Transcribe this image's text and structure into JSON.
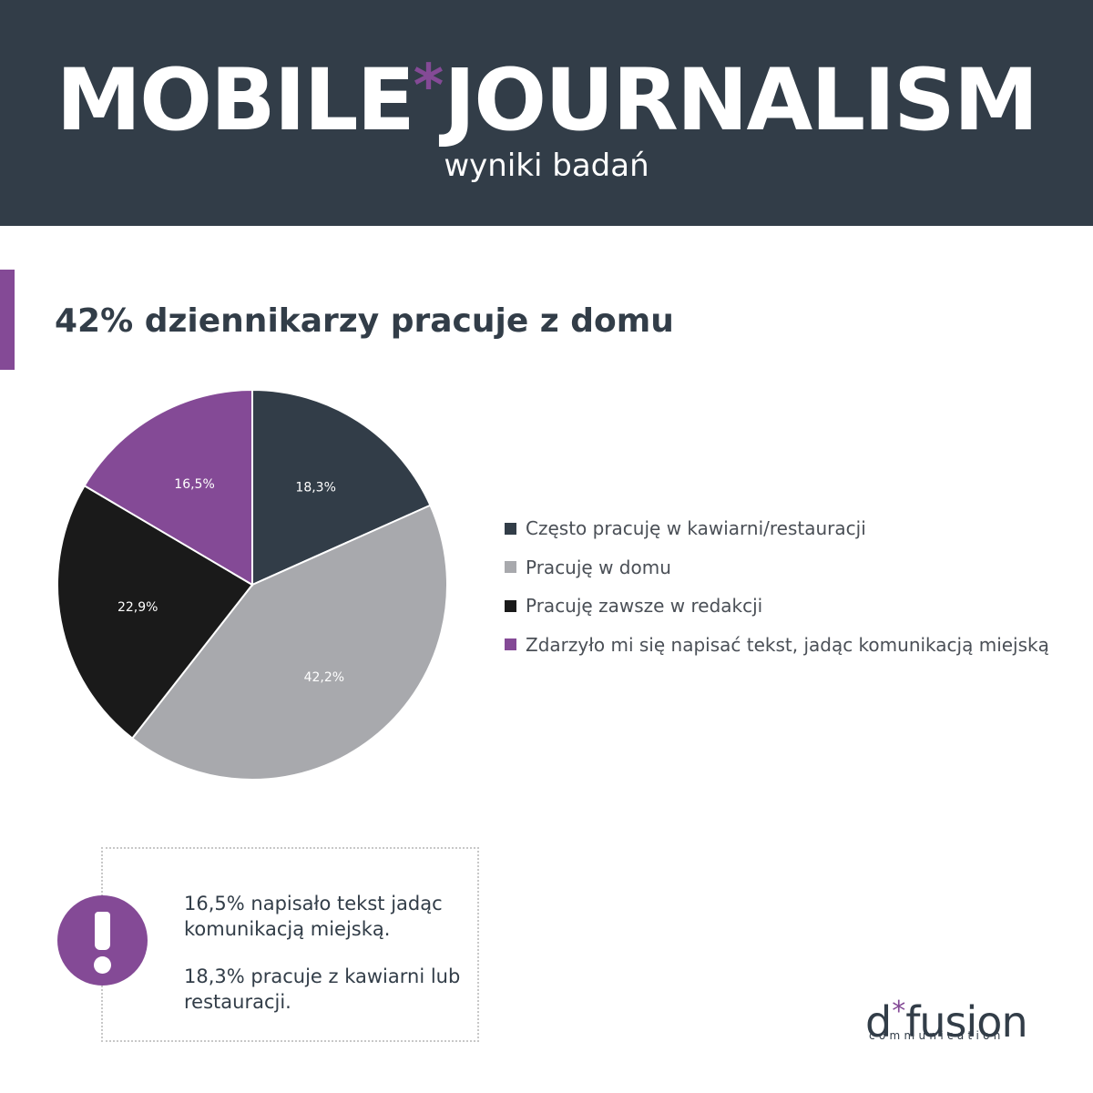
{
  "header": {
    "title_part1": "MOBILE",
    "title_star": "*",
    "title_part2": "JOURNALISM",
    "subtitle": "wyniki badań"
  },
  "headline": "42% dziennikarzy pracuje z domu",
  "colors": {
    "dark_slate": "#323d48",
    "grey": "#a8a9ad",
    "black": "#1a1a1a",
    "purple": "#844a96"
  },
  "chart_data": {
    "type": "pie",
    "slices": [
      {
        "label": "Często pracuję w kawiarni/restauracji",
        "value": 18.3,
        "value_label": "18,3%",
        "color": "#323d48"
      },
      {
        "label": "Pracuję w domu",
        "value": 42.2,
        "value_label": "42,2%",
        "color": "#a8a9ad"
      },
      {
        "label": "Pracuję zawsze w redakcji",
        "value": 22.9,
        "value_label": "22,9%",
        "color": "#1a1a1a"
      },
      {
        "label": "Zdarzyło mi się napisać tekst, jadąc komunikacją miejską",
        "value": 16.5,
        "value_label": "16,5%",
        "color": "#844a96"
      }
    ],
    "legend_position": "right"
  },
  "notes": {
    "icon": "exclamation-icon",
    "note1": "16,5% napisało tekst jadąc komunikacją miejską.",
    "note2": "18,3% pracuje z kawiarni lub restauracji."
  },
  "logo": {
    "d": "d",
    "star": "*",
    "fusion": "fusion",
    "sub": "communication"
  }
}
